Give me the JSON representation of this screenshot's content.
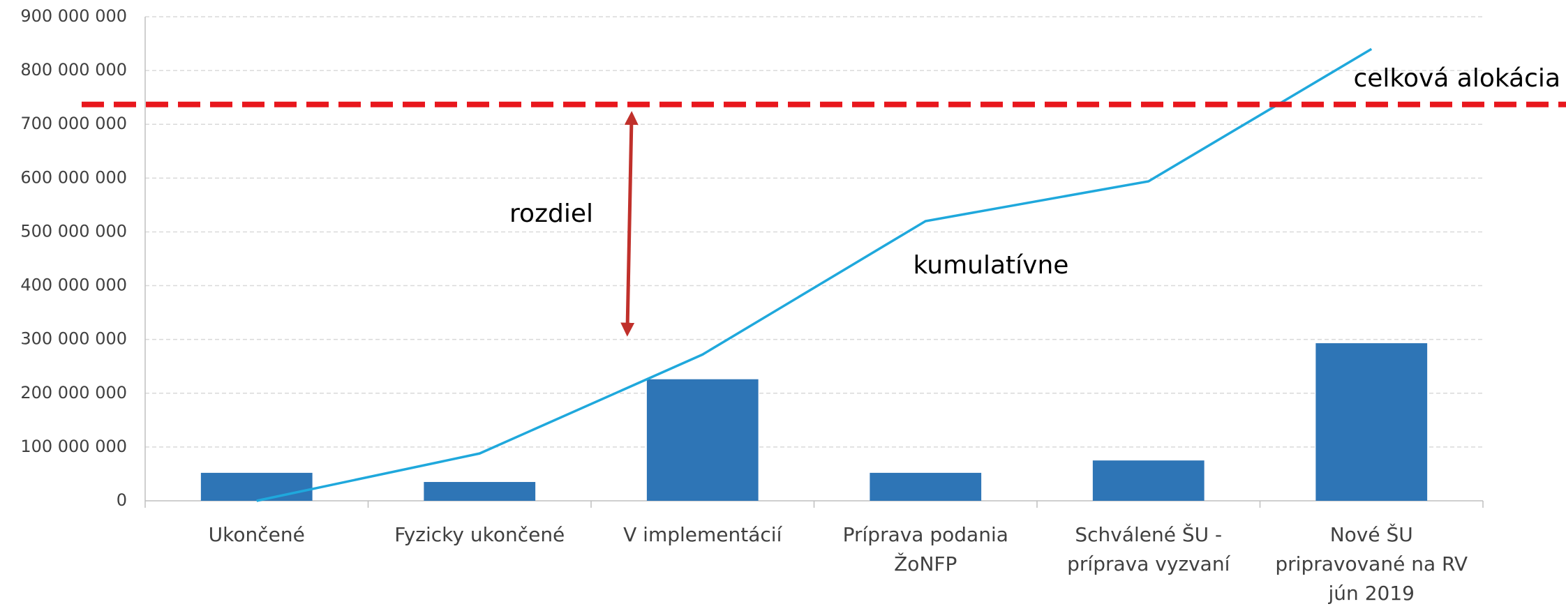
{
  "chart_data": {
    "type": "bar",
    "categories": [
      "Ukončené",
      "Fyzicky ukončené",
      "V implementácií",
      "Príprava podania ŽoNFP",
      "Schválené ŠU - príprava vyzvaní",
      "Nové ŠU pripravované na RV jún 2019"
    ],
    "series": [
      {
        "name": "",
        "type": "bar",
        "color": "#2e75b6",
        "values": [
          52000000,
          35000000,
          226000000,
          52000000,
          75000000,
          293000000
        ]
      },
      {
        "name": "kumulatívne",
        "type": "line",
        "color": "#1fa8dc",
        "values": [
          0,
          88000000,
          272000000,
          520000000,
          594000000,
          840000000
        ]
      }
    ],
    "reference_line": {
      "label": "celková alokácia",
      "value": 737000000,
      "color": "#e8171d"
    },
    "difference_arrow": {
      "label": "rozdiel",
      "from": 300000000,
      "to": 730000000,
      "color": "#c0302b"
    },
    "ylim": [
      0,
      900000000
    ],
    "yticks": [
      {
        "value": 0,
        "label": "0"
      },
      {
        "value": 100000000,
        "label": "100 000 000"
      },
      {
        "value": 200000000,
        "label": "200 000 000"
      },
      {
        "value": 300000000,
        "label": "300 000 000"
      },
      {
        "value": 400000000,
        "label": "400 000 000"
      },
      {
        "value": 500000000,
        "label": "500 000 000"
      },
      {
        "value": 600000000,
        "label": "600 000 000"
      },
      {
        "value": 700000000,
        "label": "700 000 000"
      },
      {
        "value": 800000000,
        "label": "800 000 000"
      },
      {
        "value": 900000000,
        "label": "900 000 000"
      }
    ],
    "grid": true
  }
}
